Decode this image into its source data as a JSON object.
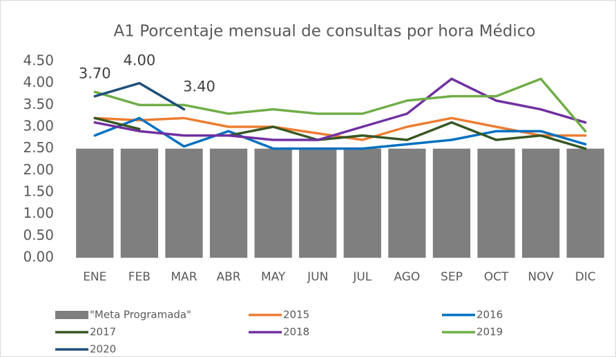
{
  "chart_data": {
    "type": "bar",
    "title": "A1 Porcentaje mensual de consultas por hora Médico",
    "categories": [
      "ENE",
      "FEB",
      "MAR",
      "ABR",
      "MAY",
      "JUN",
      "JUL",
      "AGO",
      "SEP",
      "OCT",
      "NOV",
      "DIC"
    ],
    "ylim": [
      0,
      4.5
    ],
    "yticks": [
      {
        "value": 0,
        "label": "0.00"
      },
      {
        "value": 0.5,
        "label": "0.50"
      },
      {
        "value": 1,
        "label": "1.00"
      },
      {
        "value": 1.5,
        "label": "1.50"
      },
      {
        "value": 2,
        "label": "2.00"
      },
      {
        "value": 2.5,
        "label": "2.50"
      },
      {
        "value": 3,
        "label": "3.00"
      },
      {
        "value": 3.5,
        "label": "3.50"
      },
      {
        "value": 4,
        "label": "4.00"
      },
      {
        "value": 4.5,
        "label": "4.50"
      }
    ],
    "grid": false,
    "legend": "bottom",
    "series": [
      {
        "name": "\"Meta Programada\"",
        "type": "bar",
        "color": "#7f7f7f",
        "values": [
          2.5,
          2.5,
          2.5,
          2.5,
          2.5,
          2.5,
          2.5,
          2.5,
          2.5,
          2.5,
          2.5,
          2.5
        ]
      },
      {
        "name": "2015",
        "type": "line",
        "color": "#ed7d31",
        "values": [
          3.2,
          3.15,
          3.2,
          3.0,
          3.0,
          2.85,
          2.7,
          3.0,
          3.2,
          3.0,
          2.8,
          2.8
        ]
      },
      {
        "name": "2016",
        "type": "line",
        "color": "#0070c0",
        "values": [
          2.8,
          3.2,
          2.55,
          2.9,
          2.5,
          2.5,
          2.5,
          2.6,
          2.7,
          2.9,
          2.9,
          2.6
        ]
      },
      {
        "name": "2017",
        "type": "line",
        "color": "#375623",
        "values": [
          3.2,
          2.95,
          null,
          2.8,
          3.0,
          2.7,
          2.8,
          2.7,
          3.1,
          2.7,
          2.8,
          2.5
        ]
      },
      {
        "name": "2018",
        "type": "line",
        "color": "#7030a0",
        "values": [
          3.1,
          2.9,
          2.8,
          2.8,
          2.7,
          2.7,
          3.0,
          3.3,
          4.1,
          3.6,
          3.4,
          3.1
        ]
      },
      {
        "name": "2019",
        "type": "line",
        "color": "#70ad47",
        "values": [
          3.8,
          3.5,
          3.5,
          3.3,
          3.4,
          3.3,
          3.3,
          3.6,
          3.7,
          3.7,
          4.1,
          2.9
        ]
      },
      {
        "name": "2020",
        "type": "line",
        "color": "#1f4e79",
        "values": [
          3.7,
          4.0,
          3.4,
          null,
          null,
          null,
          null,
          null,
          null,
          null,
          null,
          null
        ],
        "value_labels": [
          "3.70",
          "4.00",
          "3.40",
          null,
          null,
          null,
          null,
          null,
          null,
          null,
          null,
          null
        ]
      }
    ]
  }
}
